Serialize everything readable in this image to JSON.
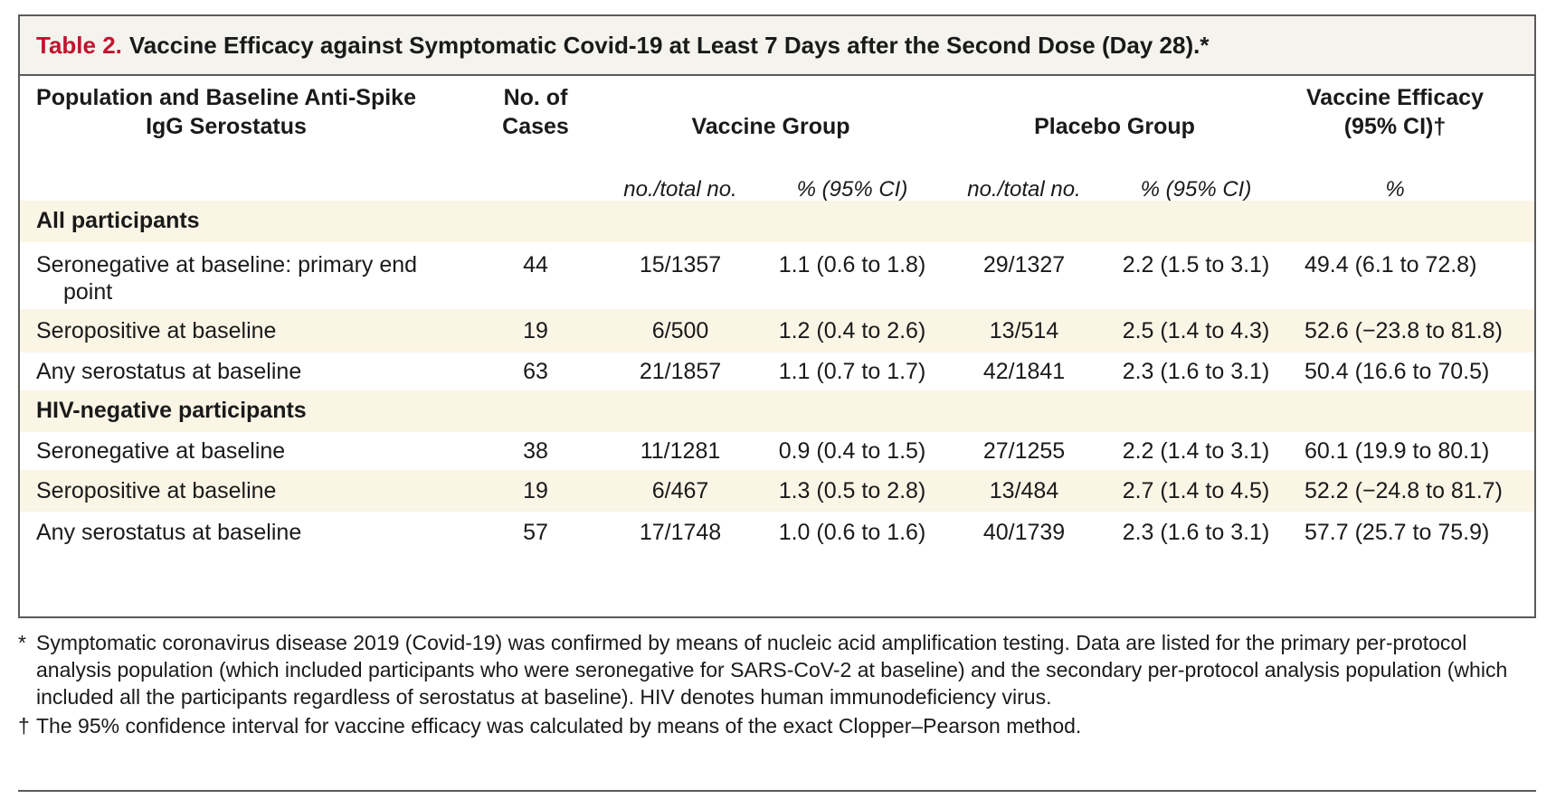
{
  "table": {
    "label": "Table 2.",
    "title": "Vaccine Efficacy against Symptomatic Covid-19 at Least 7 Days after the Second Dose (Day 28).*",
    "headers": {
      "population_line1": "Population and Baseline Anti-Spike",
      "population_line2": "IgG Serostatus",
      "cases_line1": "No. of",
      "cases_line2": "Cases",
      "vaccine_group": "Vaccine Group",
      "placebo_group": "Placebo Group",
      "efficacy_line1": "Vaccine Efficacy",
      "efficacy_line2": "(95% CI)†"
    },
    "subheaders": {
      "vaccine_no": "no./total no.",
      "vaccine_pct": "% (95% CI)",
      "placebo_no": "no./total no.",
      "placebo_pct": "% (95% CI)",
      "efficacy_pct": "%"
    },
    "sections": [
      {
        "label": "All participants",
        "rows": [
          {
            "population": "Seronegative at baseline: primary end",
            "population_cont": "point",
            "cases": "44",
            "vaccine_no": "15/1357",
            "vaccine_pct": "1.1 (0.6 to 1.8)",
            "placebo_no": "29/1327",
            "placebo_pct": "2.2 (1.5 to 3.1)",
            "efficacy": "49.4 (6.1 to 72.8)"
          },
          {
            "population": "Seropositive at baseline",
            "cases": "19",
            "vaccine_no": "6/500",
            "vaccine_pct": "1.2 (0.4 to 2.6)",
            "placebo_no": "13/514",
            "placebo_pct": "2.5 (1.4 to 4.3)",
            "efficacy": "52.6 (−23.8 to 81.8)"
          },
          {
            "population": "Any serostatus at baseline",
            "cases": "63",
            "vaccine_no": "21/1857",
            "vaccine_pct": "1.1 (0.7 to 1.7)",
            "placebo_no": "42/1841",
            "placebo_pct": "2.3 (1.6 to 3.1)",
            "efficacy": "50.4 (16.6 to 70.5)"
          }
        ]
      },
      {
        "label": "HIV-negative participants",
        "rows": [
          {
            "population": "Seronegative at baseline",
            "cases": "38",
            "vaccine_no": "11/1281",
            "vaccine_pct": "0.9 (0.4 to 1.5)",
            "placebo_no": "27/1255",
            "placebo_pct": "2.2 (1.4 to 3.1)",
            "efficacy": "60.1 (19.9 to 80.1)"
          },
          {
            "population": "Seropositive at baseline",
            "cases": "19",
            "vaccine_no": "6/467",
            "vaccine_pct": "1.3 (0.5 to 2.8)",
            "placebo_no": "13/484",
            "placebo_pct": "2.7 (1.4 to 4.5)",
            "efficacy": "52.2 (−24.8 to 81.7)"
          },
          {
            "population": "Any serostatus at baseline",
            "cases": "57",
            "vaccine_no": "17/1748",
            "vaccine_pct": "1.0 (0.6 to 1.6)",
            "placebo_no": "40/1739",
            "placebo_pct": "2.3 (1.6 to 3.1)",
            "efficacy": "57.7 (25.7 to 75.9)"
          }
        ]
      }
    ]
  },
  "footnotes": [
    {
      "symbol": "*",
      "text": "Symptomatic coronavirus disease 2019 (Covid-19) was confirmed by means of nucleic acid amplification testing. Data are listed for the primary per-protocol analysis population (which included participants who were seronegative for SARS-CoV-2 at baseline) and the secondary per-protocol analysis population (which included all the participants regardless of serostatus at baseline). HIV denotes human immunodeficiency virus."
    },
    {
      "symbol": "†",
      "text": "The 95% confidence interval for vaccine efficacy was calculated by means of the exact Clopper–Pearson method."
    }
  ],
  "colors": {
    "title_label": "#c4122f",
    "title_background": "#f4f3ee",
    "band_background": "#fbf5e6",
    "border": "#5a5a5a"
  }
}
